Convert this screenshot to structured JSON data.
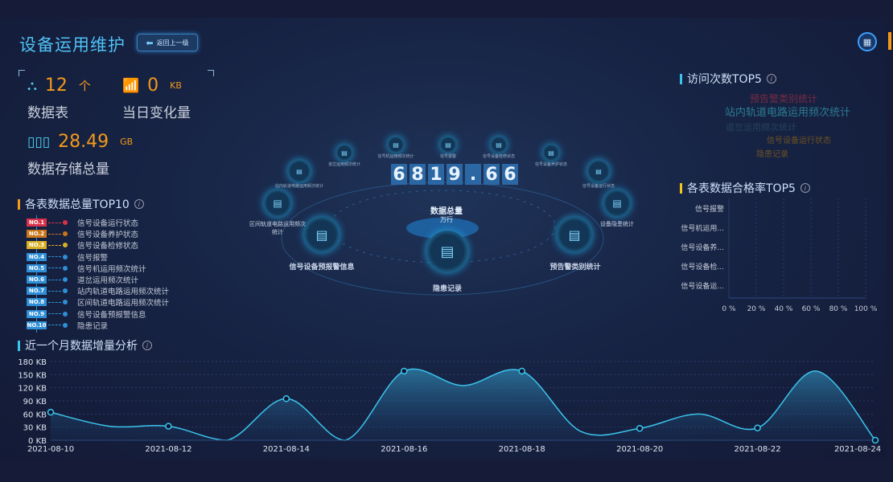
{
  "header": {
    "title": "设备运用维护",
    "back_label": "返回上一级",
    "back_icon": "arrow-left-icon",
    "menu_icon": "grid-icon"
  },
  "stats": [
    {
      "icon": "hierarchy-icon",
      "value": "12",
      "unit": "个",
      "label": "数据表"
    },
    {
      "icon": "trend-up-icon",
      "value": "0",
      "unit": "KB",
      "label": "当日变化量"
    },
    {
      "icon": "bar-chart-icon",
      "value": "28.49",
      "unit": "GB",
      "label": "数据存储总量"
    }
  ],
  "top10": {
    "title": "各表数据总量TOP10",
    "items": [
      {
        "rank": "NO.1",
        "label": "信号设备运行状态",
        "color": "#d8314a"
      },
      {
        "rank": "NO.2",
        "label": "信号设备养护状态",
        "color": "#c9761a"
      },
      {
        "rank": "NO.3",
        "label": "信号设备检修状态",
        "color": "#d9b025"
      },
      {
        "rank": "NO.4",
        "label": "信号报警",
        "color": "#2f8fd6"
      },
      {
        "rank": "NO.5",
        "label": "信号机运用频次统计",
        "color": "#2f8fd6"
      },
      {
        "rank": "NO.6",
        "label": "道岔运用频次统计",
        "color": "#2f8fd6"
      },
      {
        "rank": "NO.7",
        "label": "站内轨道电路运用频次统计",
        "color": "#2f8fd6"
      },
      {
        "rank": "NO.8",
        "label": "区间轨道电路运用频次统计",
        "color": "#2f8fd6"
      },
      {
        "rank": "NO.9",
        "label": "信号设备预报警信息",
        "color": "#2f8fd6"
      },
      {
        "rank": "NO.10",
        "label": "隐患记录",
        "color": "#2f8fd6"
      }
    ]
  },
  "center": {
    "total_digits": [
      "6",
      "8",
      "1",
      "9",
      ".",
      "6",
      "6"
    ],
    "total_label": "数据总量",
    "total_unit": "万行",
    "big_nodes": [
      "信号设备预报警信息",
      "隐患记录",
      "预告警类别统计"
    ],
    "mid_nodes": [
      "区间轨道电路运用频次统计",
      "设备隐患统计"
    ],
    "small_nodes": [
      "站内轨道电路运用频次统计",
      "道岔运用频次统计",
      "信号机运用频次统计",
      "信号报警",
      "信号设备检修状态",
      "信号设备养护状态",
      "信号设备运行状态"
    ]
  },
  "visits": {
    "title": "访问次数TOP5",
    "words": [
      {
        "text": "预告警类别统计",
        "color": "#7a2a45"
      },
      {
        "text": "站内轨道电路运用频次统计",
        "color": "#2b7c93"
      },
      {
        "text": "道岔运用频次统计",
        "color": "#24425f"
      },
      {
        "text": "信号设备运行状态",
        "color": "#6e5123"
      },
      {
        "text": "隐患记录",
        "color": "#6e5123"
      }
    ]
  },
  "chart_data": [
    {
      "type": "bar",
      "orientation": "horizontal",
      "title": "各表数据合格率TOP5",
      "categories": [
        "信号报警",
        "信号机运用...",
        "信号设备养...",
        "信号设备检...",
        "信号设备运..."
      ],
      "values": [
        0,
        0,
        0,
        0,
        0
      ],
      "xlim": [
        0,
        100
      ],
      "x_ticks": [
        "0 %",
        "20 %",
        "40 %",
        "60 %",
        "80 %",
        "100 %"
      ],
      "grid": true
    },
    {
      "type": "area",
      "title": "近一个月数据增量分析",
      "x": [
        "2021-08-10",
        "2021-08-11",
        "2021-08-12",
        "2021-08-13",
        "2021-08-14",
        "2021-08-15",
        "2021-08-16",
        "2021-08-17",
        "2021-08-18",
        "2021-08-19",
        "2021-08-20",
        "2021-08-21",
        "2021-08-22",
        "2021-08-23",
        "2021-08-24"
      ],
      "x_ticks": [
        "2021-08-10",
        "2021-08-12",
        "2021-08-14",
        "2021-08-16",
        "2021-08-18",
        "2021-08-20",
        "2021-08-22",
        "2021-08-24"
      ],
      "values": [
        64,
        32,
        32,
        0,
        95,
        0,
        158,
        125,
        158,
        20,
        27,
        60,
        28,
        158,
        0
      ],
      "ylim": [
        0,
        180
      ],
      "y_ticks": [
        "0 KB",
        "30 KB",
        "60 KB",
        "90 KB",
        "120 KB",
        "150 KB",
        "180 KB"
      ],
      "color": "#3cc4ec",
      "grid": true
    }
  ]
}
